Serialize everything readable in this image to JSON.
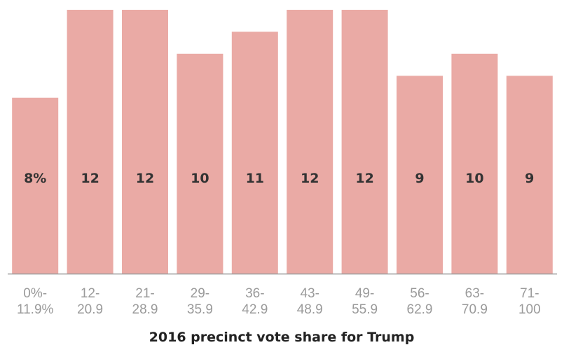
{
  "chart_data": {
    "type": "bar",
    "categories": [
      [
        "0%-",
        "11.9%"
      ],
      [
        "12-",
        "20.9"
      ],
      [
        "21-",
        "28.9"
      ],
      [
        "29-",
        "35.9"
      ],
      [
        "36-",
        "42.9"
      ],
      [
        "43-",
        "48.9"
      ],
      [
        "49-",
        "55.9"
      ],
      [
        "56-",
        "62.9"
      ],
      [
        "63-",
        "70.9"
      ],
      [
        "71-",
        "100"
      ]
    ],
    "values": [
      8,
      12,
      12,
      10,
      11,
      12,
      12,
      9,
      10,
      9
    ],
    "value_labels": [
      "8%",
      "12",
      "12",
      "10",
      "11",
      "12",
      "12",
      "9",
      "10",
      "9"
    ],
    "title": "",
    "xlabel": "2016 precinct vote share for Trump",
    "ylabel": "",
    "ylim": [
      0,
      12
    ],
    "grid": false,
    "bar_color": "#eaaaa5",
    "axis_color": "#9a9a9a"
  }
}
